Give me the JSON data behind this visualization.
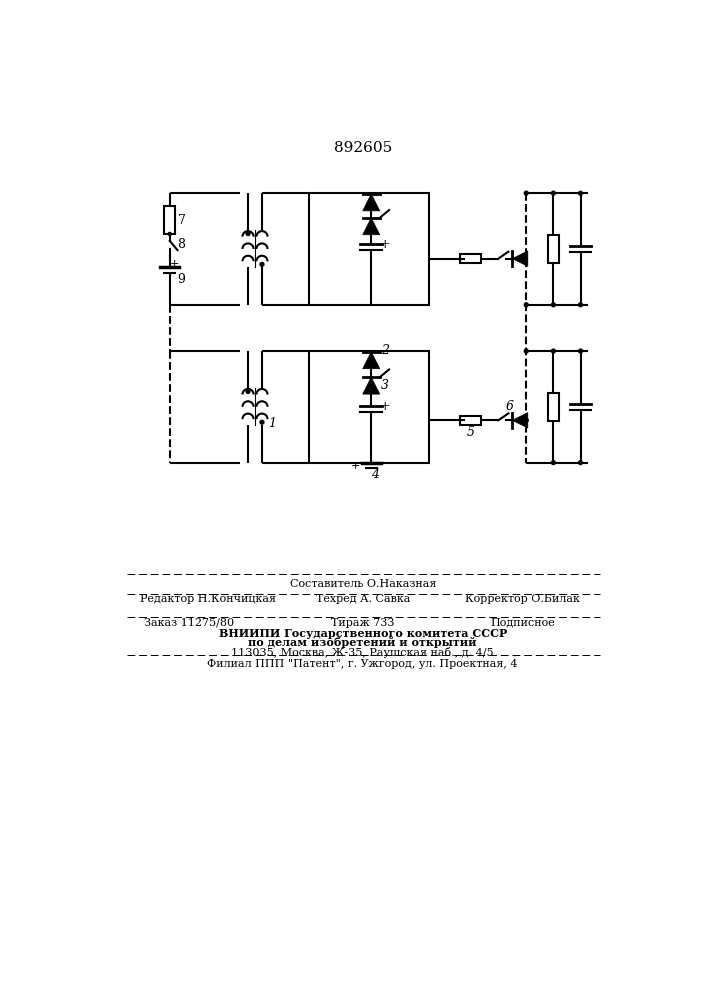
{
  "patent_number": "892605",
  "bg_color": "#ffffff",
  "line_color": "#000000",
  "line_width": 1.5,
  "fig_width": 7.07,
  "fig_height": 10.0,
  "footer": {
    "line1": "Составитель О.Наказная",
    "line2_left": "Редактор Н.Кончицкая",
    "line2_mid": "Техред А. Савка",
    "line2_right": "Корректор О.Билак",
    "line3_left": "Заказ 11275/80",
    "line3_mid": "Тираж 733",
    "line3_right": "Подписное",
    "line4": "ВНИИПИ Государственного комитета СССР",
    "line5": "по делам изобретений и открытий",
    "line6": "113035, Москва, Ж-35, Раушская наб., д. 4/5",
    "line7": "Филиал ППП \"Патент\", г. Ужгород, ул. Проектная, 4"
  }
}
